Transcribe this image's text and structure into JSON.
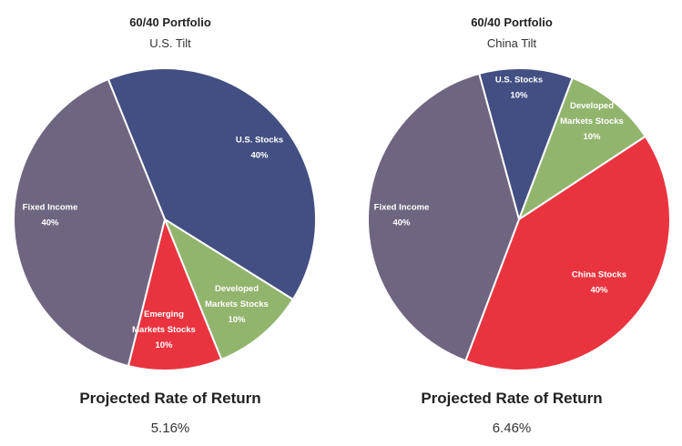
{
  "chart_data": [
    {
      "type": "pie",
      "title": "60/40 Portfolio",
      "subtitle": "U.S. Tilt",
      "slices": [
        {
          "label": "U.S. Stocks",
          "value": 40,
          "value_label": "40%",
          "color": "#434f82"
        },
        {
          "label": "Developed Markets Stocks",
          "value": 10,
          "value_label": "10%",
          "color": "#92b56e"
        },
        {
          "label": "Emerging Markets Stocks",
          "value": 10,
          "value_label": "10%",
          "color": "#e9343f"
        },
        {
          "label": "Fixed Income",
          "value": 40,
          "value_label": "40%",
          "color": "#706581"
        }
      ],
      "return_label": "Projected Rate of Return",
      "return_value": "5.16%"
    },
    {
      "type": "pie",
      "title": "60/40 Portfolio",
      "subtitle": "China Tilt",
      "slices": [
        {
          "label": "U.S. Stocks",
          "value": 10,
          "value_label": "10%",
          "color": "#434f82"
        },
        {
          "label": "Developed Markets Stocks",
          "value": 10,
          "value_label": "10%",
          "color": "#92b56e"
        },
        {
          "label": "China Stocks",
          "value": 40,
          "value_label": "40%",
          "color": "#e9343f"
        },
        {
          "label": "Fixed Income",
          "value": 40,
          "value_label": "40%",
          "color": "#706581"
        }
      ],
      "return_label": "Projected Rate of Return",
      "return_value": "6.46%"
    }
  ]
}
